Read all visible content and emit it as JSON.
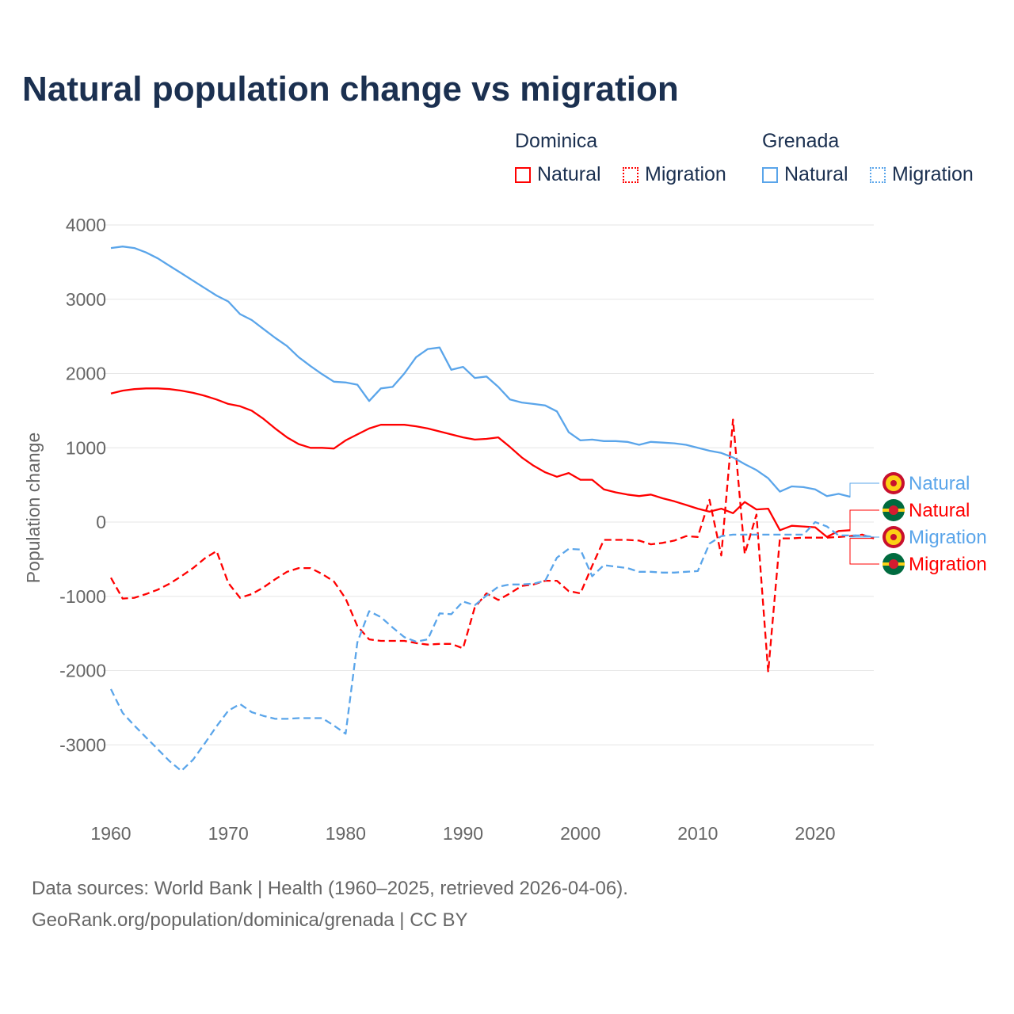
{
  "title": "Natural population change vs migration",
  "legend": {
    "groups": [
      {
        "name": "Dominica",
        "items": [
          "Natural",
          "Migration"
        ],
        "color": "#ff0000"
      },
      {
        "name": "Grenada",
        "items": [
          "Natural",
          "Migration"
        ],
        "color": "#5aa5ea"
      }
    ]
  },
  "end_labels": [
    {
      "text": "Natural",
      "country": "Grenada",
      "color": "#5aa5ea",
      "icon": "grenada-flag-icon"
    },
    {
      "text": "Natural",
      "country": "Dominica",
      "color": "#ff0000",
      "icon": "dominica-flag-icon"
    },
    {
      "text": "Migration",
      "country": "Grenada",
      "color": "#5aa5ea",
      "icon": "grenada-flag-icon"
    },
    {
      "text": "Migration",
      "country": "Dominica",
      "color": "#ff0000",
      "icon": "dominica-flag-icon"
    }
  ],
  "source": {
    "line1": "Data sources: World Bank | Health (1960–2025, retrieved 2026-04-06).",
    "line2": "GeoRank.org/population/dominica/grenada | CC BY"
  },
  "chart_data": {
    "type": "line",
    "title": "Natural population change vs migration",
    "xlabel": "",
    "ylabel": "Population change",
    "xlim": [
      1960,
      2025
    ],
    "ylim": [
      -4000,
      4000
    ],
    "xticks": [
      1960,
      1970,
      1980,
      1990,
      2000,
      2010,
      2020
    ],
    "yticks": [
      4000,
      3000,
      2000,
      1000,
      0,
      -1000,
      -2000,
      -3000
    ],
    "grid": true,
    "legend_position": "top-right",
    "x_start": 1960,
    "series": [
      {
        "name": "Dominica Natural",
        "color": "#ff0000",
        "dash": false,
        "values": [
          1730,
          1770,
          1790,
          1800,
          1800,
          1790,
          1770,
          1740,
          1700,
          1650,
          1590,
          1560,
          1500,
          1390,
          1260,
          1140,
          1050,
          1000,
          1000,
          990,
          1100,
          1180,
          1260,
          1310,
          1310,
          1310,
          1290,
          1260,
          1220,
          1180,
          1140,
          1110,
          1120,
          1140,
          1010,
          870,
          760,
          670,
          610,
          660,
          570,
          570,
          440,
          400,
          370,
          350,
          370,
          320,
          280,
          230,
          180,
          140,
          180,
          120,
          270,
          170,
          180,
          -110,
          -50,
          -60,
          -70,
          -200,
          -120,
          -110
        ]
      },
      {
        "name": "Dominica Migration",
        "color": "#ff0000",
        "dash": true,
        "values": [
          -750,
          -1030,
          -1020,
          -970,
          -910,
          -830,
          -730,
          -620,
          -490,
          -390,
          -820,
          -1020,
          -970,
          -880,
          -770,
          -670,
          -620,
          -620,
          -700,
          -800,
          -1030,
          -1400,
          -1580,
          -1600,
          -1600,
          -1600,
          -1630,
          -1650,
          -1640,
          -1640,
          -1700,
          -1150,
          -960,
          -1050,
          -960,
          -860,
          -840,
          -790,
          -790,
          -930,
          -960,
          -590,
          -240,
          -240,
          -240,
          -250,
          -300,
          -280,
          -250,
          -190,
          -200,
          300,
          -450,
          1380,
          -430,
          100,
          -2020,
          -220,
          -220,
          -210,
          -210,
          -210,
          -200,
          -190,
          -170,
          -220
        ]
      },
      {
        "name": "Grenada Natural",
        "color": "#5aa5ea",
        "dash": false,
        "values": [
          3690,
          3710,
          3690,
          3630,
          3550,
          3450,
          3350,
          3250,
          3150,
          3050,
          2970,
          2800,
          2720,
          2600,
          2480,
          2370,
          2220,
          2100,
          1990,
          1890,
          1880,
          1850,
          1630,
          1800,
          1820,
          2000,
          2220,
          2330,
          2350,
          2050,
          2090,
          1940,
          1960,
          1820,
          1650,
          1610,
          1590,
          1570,
          1490,
          1210,
          1100,
          1110,
          1090,
          1090,
          1080,
          1040,
          1080,
          1070,
          1060,
          1040,
          1000,
          960,
          930,
          870,
          780,
          700,
          590,
          410,
          480,
          470,
          440,
          350,
          380,
          340
        ]
      },
      {
        "name": "Grenada Migration",
        "color": "#5aa5ea",
        "dash": true,
        "values": [
          -2250,
          -2570,
          -2740,
          -2900,
          -3060,
          -3220,
          -3350,
          -3200,
          -2980,
          -2750,
          -2540,
          -2450,
          -2560,
          -2610,
          -2650,
          -2650,
          -2640,
          -2640,
          -2640,
          -2740,
          -2850,
          -1620,
          -1200,
          -1280,
          -1420,
          -1550,
          -1610,
          -1580,
          -1230,
          -1240,
          -1070,
          -1120,
          -990,
          -870,
          -840,
          -840,
          -830,
          -790,
          -480,
          -360,
          -370,
          -730,
          -580,
          -600,
          -620,
          -670,
          -670,
          -680,
          -680,
          -670,
          -660,
          -290,
          -190,
          -170,
          -170,
          -170,
          -170,
          -170,
          -170,
          -170,
          0,
          -60,
          -180,
          -180,
          -180,
          -200
        ]
      }
    ]
  }
}
